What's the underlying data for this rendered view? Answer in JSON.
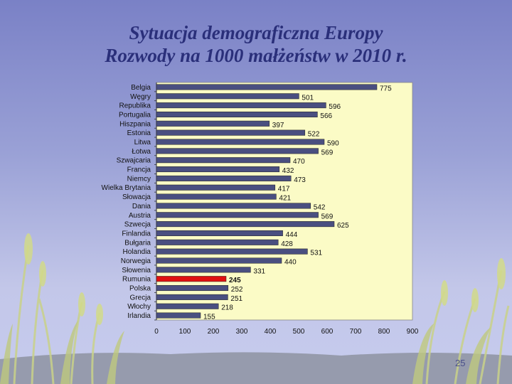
{
  "slide": {
    "title_line1": "Sytuacja demograficzna Europy",
    "title_line2": "Rozwody na 1000 małżeństw w 2010 r.",
    "page_number": "25"
  },
  "colors": {
    "bar": "#4a4f80",
    "highlight": "#e01010",
    "plot_background": "#fbfbc6",
    "title": "#2a2f7a"
  },
  "chart_data": {
    "type": "bar",
    "orientation": "horizontal",
    "categories": [
      "Belgia",
      "Węgry",
      "Republika",
      "Portugalia",
      "Hiszpania",
      "Estonia",
      "Litwa",
      "Łotwa",
      "Szwajcaria",
      "Francja",
      "Niemcy",
      "Wielka Brytania",
      "Słowacja",
      "Dania",
      "Austria",
      "Szwecja",
      "Finlandia",
      "Bułgaria",
      "Holandia",
      "Norwegia",
      "Słowenia",
      "Rumunia",
      "Polska",
      "Grecja",
      "Włochy",
      "Irlandia"
    ],
    "values": [
      775,
      501,
      596,
      566,
      397,
      522,
      590,
      569,
      470,
      432,
      473,
      417,
      421,
      542,
      569,
      625,
      444,
      428,
      531,
      440,
      331,
      245,
      252,
      251,
      218,
      155
    ],
    "highlight_category": "Rumunia",
    "xlim": [
      0,
      900
    ],
    "xticks": [
      0,
      100,
      200,
      300,
      400,
      500,
      600,
      700,
      800,
      900
    ],
    "grid": false,
    "legend": "none"
  }
}
